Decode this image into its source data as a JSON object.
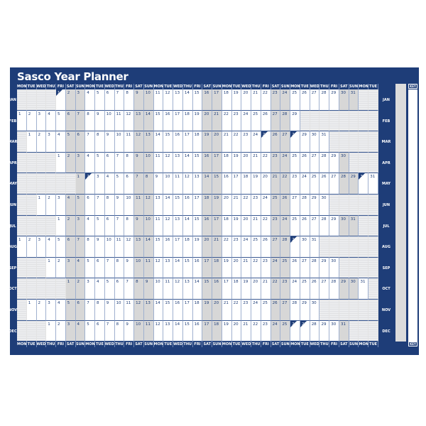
{
  "title": "Sasco Year Planner",
  "weekdays": [
    "MON",
    "TUE",
    "WED",
    "THU",
    "FRI",
    "SAT",
    "SUN"
  ],
  "columns": 37,
  "months": [
    {
      "label": "JAN",
      "start_weekday": "FRI",
      "days": 31
    },
    {
      "label": "FEB",
      "start_weekday": "MON",
      "days": 29
    },
    {
      "label": "MAR",
      "start_weekday": "TUE",
      "days": 31
    },
    {
      "label": "APR",
      "start_weekday": "FRI",
      "days": 30
    },
    {
      "label": "MAY",
      "start_weekday": "SUN",
      "days": 31
    },
    {
      "label": "JUN",
      "start_weekday": "WED",
      "days": 30
    },
    {
      "label": "JUL",
      "start_weekday": "FRI",
      "days": 31
    },
    {
      "label": "AUG",
      "start_weekday": "MON",
      "days": 31
    },
    {
      "label": "SEP",
      "start_weekday": "THU",
      "days": 30
    },
    {
      "label": "OCT",
      "start_weekday": "SAT",
      "days": 31
    },
    {
      "label": "NOV",
      "start_weekday": "TUE",
      "days": 30
    },
    {
      "label": "DEC",
      "start_weekday": "THU",
      "days": 31
    }
  ],
  "holidays": [
    [
      "JAN",
      1
    ],
    [
      "MAR",
      25
    ],
    [
      "MAR",
      28
    ],
    [
      "MAY",
      2
    ],
    [
      "MAY",
      30
    ],
    [
      "AUG",
      29
    ],
    [
      "DEC",
      26
    ],
    [
      "DEC",
      27
    ]
  ],
  "key_label": "KEY",
  "colors": {
    "board": "#1e3d78",
    "weekend": "#d7d7d7",
    "blank": "#e7e8ea"
  }
}
